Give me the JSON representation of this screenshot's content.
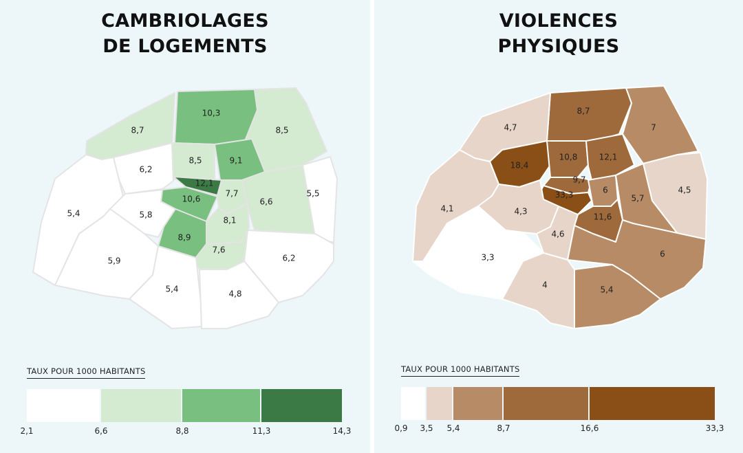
{
  "left": {
    "title_line1": "CAMBRIOLAGES",
    "title_line2": "DE LOGEMENTS",
    "legend_title": "TAUX POUR 1000 HABITANTS",
    "legend_ticks": [
      "2,1",
      "6,6",
      "8,8",
      "11,3",
      "14,3"
    ],
    "legend_colors": [
      "#ffffff",
      "#d4ead1",
      "#79bf80",
      "#3b7a44"
    ],
    "regions": [
      {
        "label": "10,3",
        "color": "#79bf80"
      },
      {
        "label": "8,7",
        "color": "#d4ead1"
      },
      {
        "label": "8,5",
        "color": "#d4ead1"
      },
      {
        "label": "6,2",
        "color": "#ffffff"
      },
      {
        "label": "8,5",
        "color": "#d4ead1"
      },
      {
        "label": "9,1",
        "color": "#79bf80"
      },
      {
        "label": "12,1",
        "color": "#3b7a44"
      },
      {
        "label": "10,6",
        "color": "#79bf80"
      },
      {
        "label": "7,7",
        "color": "#d4ead1"
      },
      {
        "label": "6,6",
        "color": "#d4ead1"
      },
      {
        "label": "5,5",
        "color": "#ffffff"
      },
      {
        "label": "5,4",
        "color": "#ffffff"
      },
      {
        "label": "5,8",
        "color": "#ffffff"
      },
      {
        "label": "8,1",
        "color": "#d4ead1"
      },
      {
        "label": "8,9",
        "color": "#79bf80"
      },
      {
        "label": "7,6",
        "color": "#d4ead1"
      },
      {
        "label": "6,2",
        "color": "#ffffff"
      },
      {
        "label": "5,9",
        "color": "#ffffff"
      },
      {
        "label": "5,4",
        "color": "#ffffff"
      },
      {
        "label": "4,8",
        "color": "#ffffff"
      }
    ]
  },
  "right": {
    "title_line1": "VIOLENCES",
    "title_line2": "PHYSIQUES",
    "legend_title": "TAUX POUR 1000 HABITANTS",
    "legend_ticks": [
      "0,9",
      "3,5",
      "5,4",
      "8,7",
      "16,6",
      "33,3"
    ],
    "legend_colors": [
      "#ffffff",
      "#e6d5c8",
      "#b78b65",
      "#9e6a3c",
      "#8a4f17"
    ],
    "regions": [
      {
        "label": "8,7",
        "color": "#9e6a3c"
      },
      {
        "label": "4,7",
        "color": "#e6d5c8"
      },
      {
        "label": "7",
        "color": "#b78b65"
      },
      {
        "label": "18,4",
        "color": "#8a4f17"
      },
      {
        "label": "10,8",
        "color": "#9e6a3c"
      },
      {
        "label": "12,1",
        "color": "#9e6a3c"
      },
      {
        "label": "4,5",
        "color": "#e6d5c8"
      },
      {
        "label": "9,7",
        "color": "#9e6a3c"
      },
      {
        "label": "33,3",
        "color": "#8a4f17"
      },
      {
        "label": "6",
        "color": "#b78b65"
      },
      {
        "label": "5,7",
        "color": "#b78b65"
      },
      {
        "label": "4,1",
        "color": "#e6d5c8"
      },
      {
        "label": "4,3",
        "color": "#e6d5c8"
      },
      {
        "label": "11,6",
        "color": "#9e6a3c"
      },
      {
        "label": "4,6",
        "color": "#e6d5c8"
      },
      {
        "label": "3,3",
        "color": "#ffffff"
      },
      {
        "label": "6",
        "color": "#b78b65"
      },
      {
        "label": "4",
        "color": "#e6d5c8"
      },
      {
        "label": "5,4",
        "color": "#b78b65"
      }
    ]
  }
}
